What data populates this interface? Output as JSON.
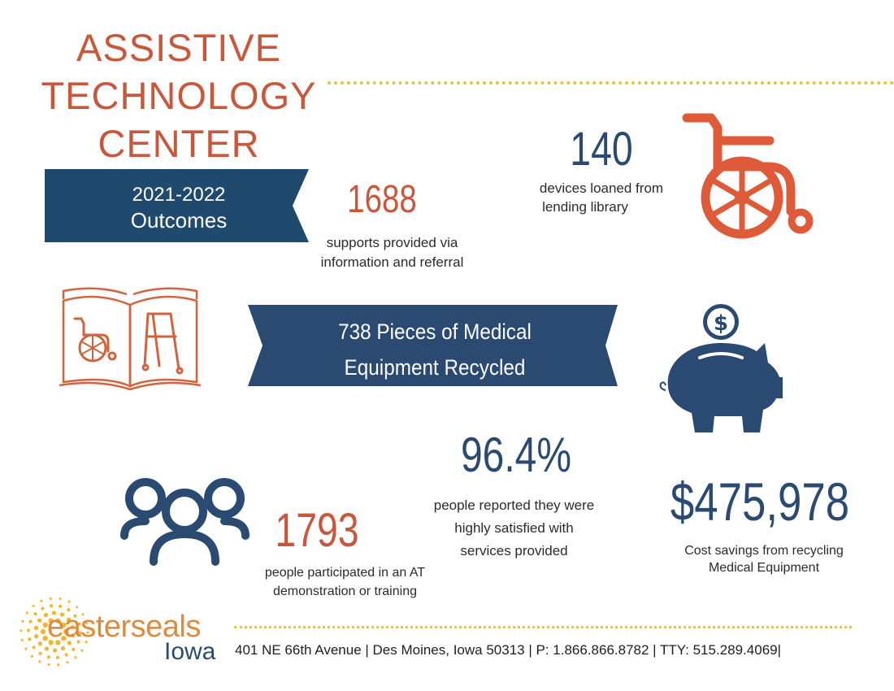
{
  "title": {
    "line1": "ASSISTIVE",
    "line2": "TECHNOLOGY",
    "line3": "CENTER"
  },
  "period_banner": {
    "line1": "2021-2022",
    "line2": "Outcomes"
  },
  "stat_supports": {
    "value": "1688",
    "caption_line1": "supports provided via",
    "caption_line2": "information and referral"
  },
  "stat_devices": {
    "value": "140",
    "caption_line1": "devices loaned from",
    "caption_line2": "lending library"
  },
  "recycled_banner": {
    "line1": "738 Pieces of Medical",
    "line2": "Equipment Recycled"
  },
  "stat_satisfaction": {
    "value": "96.4%",
    "caption_line1": "people reported they were",
    "caption_line2": "highly satisfied with",
    "caption_line3": "services provided"
  },
  "stat_participants": {
    "value": "1793",
    "caption_line1": "people participated in an AT",
    "caption_line2": "demonstration or training"
  },
  "stat_savings": {
    "value": "$475,978",
    "caption_line1": "Cost savings from recycling",
    "caption_line2": "Medical Equipment"
  },
  "footer": {
    "brand_name": "easterseals",
    "brand_region": "Iowa",
    "address": "401 NE 66th Avenue | Des Moines, Iowa 50313 | P: 1.866.866.8782 | TTY: 515.289.4069|"
  },
  "icons": {
    "wheelchair": "wheelchair-icon",
    "book": "open-book-icon",
    "piggy_bank": "piggy-bank-icon",
    "people": "people-group-icon",
    "logo": "easterseals-sunburst-logo"
  },
  "colors": {
    "orange": "#c9573c",
    "navy": "#2a4a72",
    "banner_navy": "#1f4a6e",
    "gold": "#e8c53a"
  }
}
